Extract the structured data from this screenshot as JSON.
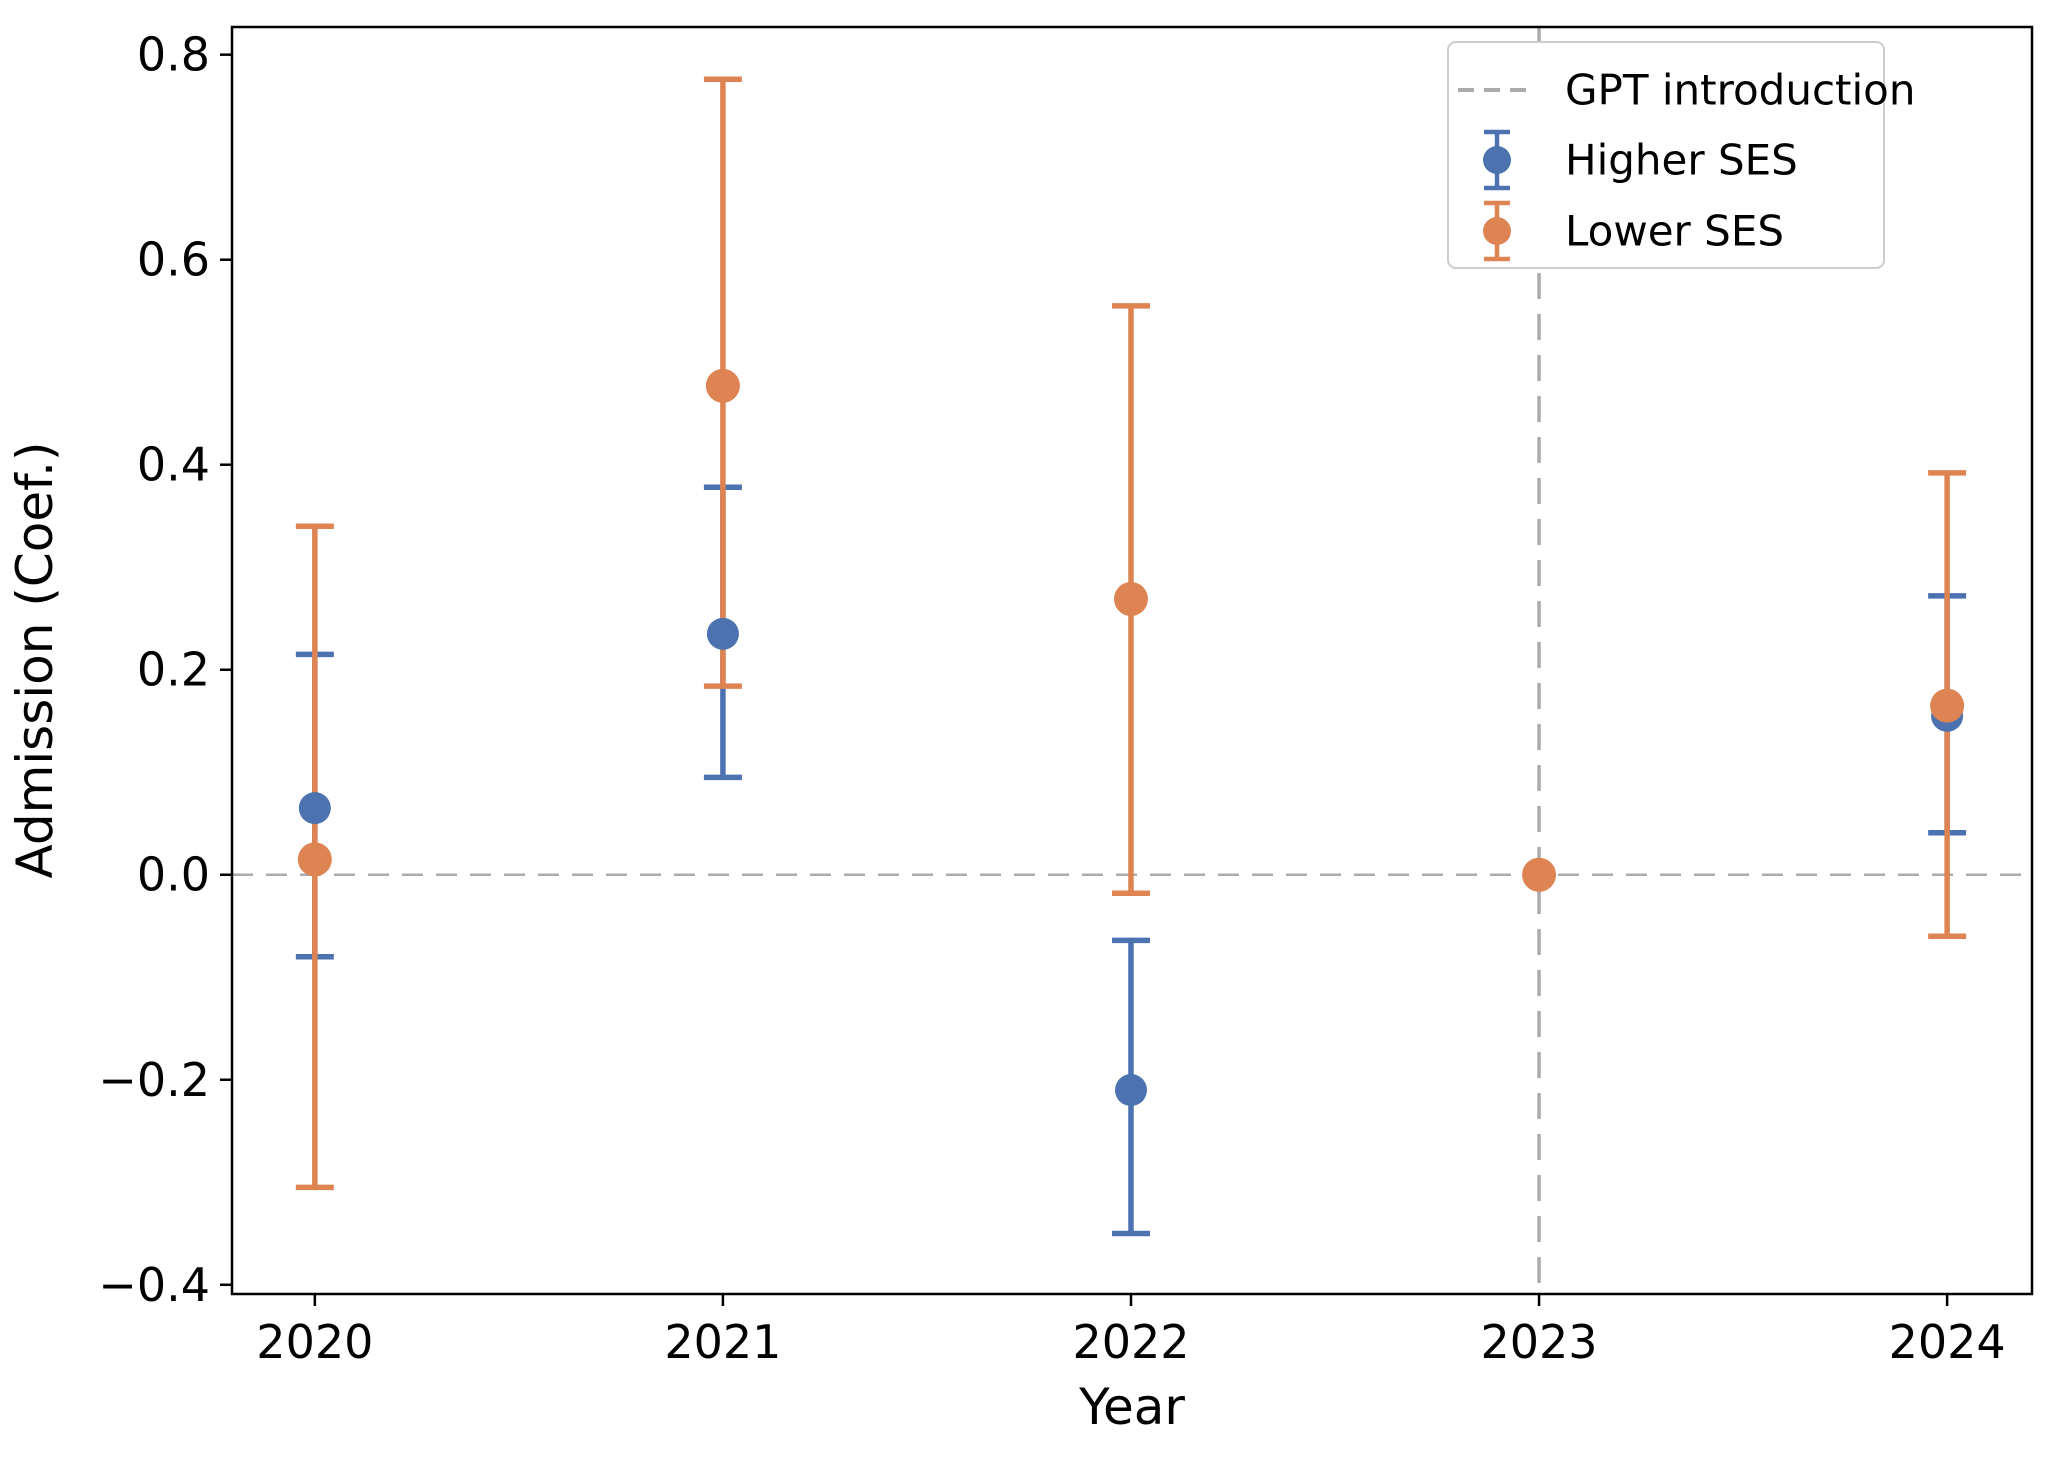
{
  "chart_data": {
    "type": "scatter",
    "subtype": "errorbar",
    "title": "",
    "xlabel": "Year",
    "ylabel": "Admission (Coef.)",
    "xlim": [
      2019.797,
      2024.208
    ],
    "ylim": [
      -0.409,
      0.827
    ],
    "grid": false,
    "legend_position": "upper right",
    "x_ticks": [
      {
        "value": 2020,
        "label": "2020"
      },
      {
        "value": 2021,
        "label": "2021"
      },
      {
        "value": 2022,
        "label": "2022"
      },
      {
        "value": 2023,
        "label": "2023"
      },
      {
        "value": 2024,
        "label": "2024"
      }
    ],
    "y_ticks": [
      {
        "value": 0.8,
        "label": "0.8"
      },
      {
        "value": 0.6,
        "label": "0.6"
      },
      {
        "value": 0.4,
        "label": "0.4"
      },
      {
        "value": 0.2,
        "label": "0.2"
      },
      {
        "value": 0.0,
        "label": "0.0"
      },
      {
        "value": -0.2,
        "label": "−0.2"
      },
      {
        "value": -0.4,
        "label": "−0.4"
      }
    ],
    "reference_lines": [
      {
        "orientation": "vertical",
        "x": 2023,
        "legend_label": "GPT introduction",
        "color": "#ababab",
        "style": "dashed"
      },
      {
        "orientation": "horizontal",
        "y": 0.0,
        "legend_label": null,
        "color": "#ababab",
        "style": "dashed"
      }
    ],
    "series": [
      {
        "name": "Higher SES",
        "color": "#4C72B0",
        "points": [
          {
            "x": 2020,
            "y": 0.065,
            "lo": -0.08,
            "hi": 0.215
          },
          {
            "x": 2021,
            "y": 0.235,
            "lo": 0.095,
            "hi": 0.378
          },
          {
            "x": 2022,
            "y": -0.21,
            "lo": -0.35,
            "hi": -0.064
          },
          {
            "x": 2024,
            "y": 0.155,
            "lo": 0.041,
            "hi": 0.272
          }
        ]
      },
      {
        "name": "Lower SES",
        "color": "#DD8452",
        "points": [
          {
            "x": 2020,
            "y": 0.015,
            "lo": -0.305,
            "hi": 0.34
          },
          {
            "x": 2021,
            "y": 0.477,
            "lo": 0.184,
            "hi": 0.776
          },
          {
            "x": 2022,
            "y": 0.269,
            "lo": -0.018,
            "hi": 0.555
          },
          {
            "x": 2023,
            "y": 0.0,
            "lo": null,
            "hi": null
          },
          {
            "x": 2024,
            "y": 0.165,
            "lo": -0.06,
            "hi": 0.392
          }
        ]
      }
    ]
  }
}
